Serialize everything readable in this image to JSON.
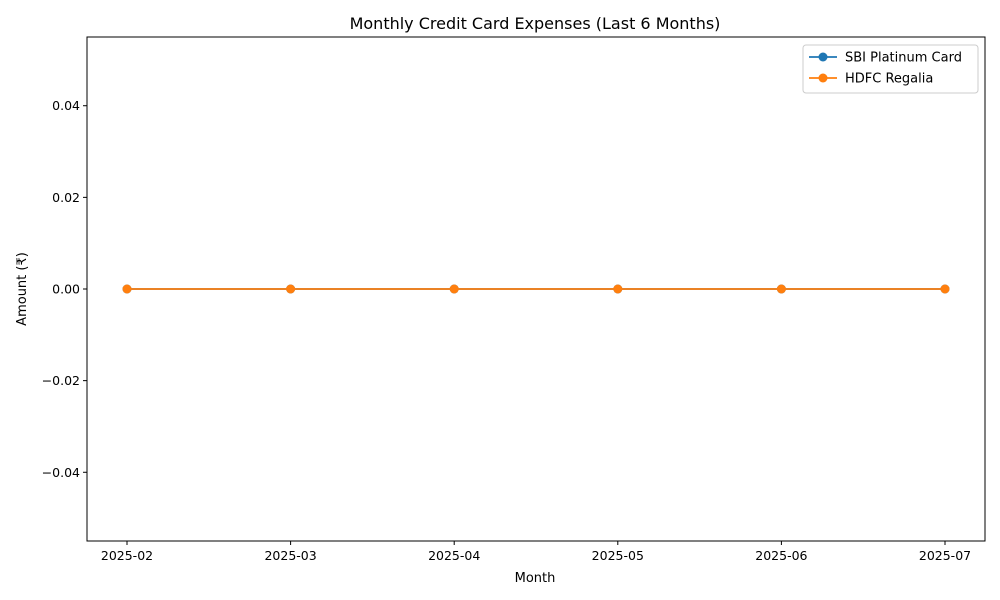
{
  "chart_data": {
    "type": "line",
    "title": "Monthly Credit Card Expenses (Last 6 Months)",
    "xlabel": "Month",
    "ylabel": "Amount (₹)",
    "x": [
      "2025-02",
      "2025-03",
      "2025-04",
      "2025-05",
      "2025-06",
      "2025-07"
    ],
    "ylim": [
      -0.055,
      0.055
    ],
    "yticks": [
      -0.04,
      -0.02,
      0.0,
      0.02,
      0.04
    ],
    "ytick_labels": [
      "−0.04",
      "−0.02",
      "0.00",
      "0.02",
      "0.04"
    ],
    "series": [
      {
        "name": "SBI Platinum Card",
        "values": [
          0,
          0,
          0,
          0,
          0,
          0
        ],
        "color": "#1f77b4"
      },
      {
        "name": "HDFC Regalia",
        "values": [
          0,
          0,
          0,
          0,
          0,
          0
        ],
        "color": "#ff7f0e"
      }
    ],
    "legend": "top-right",
    "grid": false
  }
}
